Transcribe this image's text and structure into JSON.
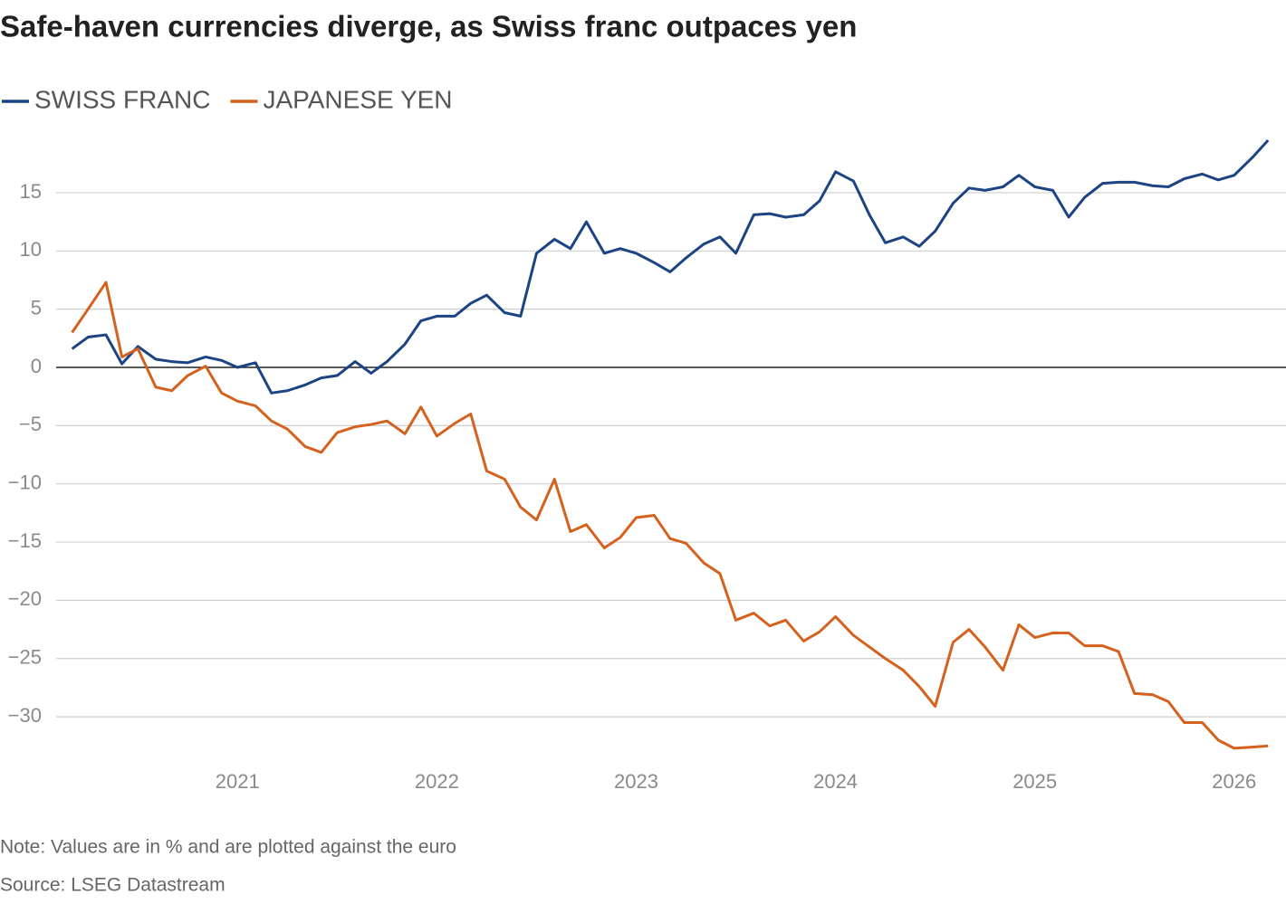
{
  "chart_data": {
    "type": "line",
    "title": "Safe-haven currencies diverge, as Swiss franc outpaces yen",
    "note": "Note: Values are in % and are plotted against the euro",
    "source": "Source: LSEG Datastream",
    "legend": "top-left",
    "grid": true,
    "x": [
      2020.17,
      2020.25,
      2020.34,
      2020.42,
      2020.5,
      2020.59,
      2020.67,
      2020.75,
      2020.84,
      2020.92,
      2021.0,
      2021.09,
      2021.17,
      2021.25,
      2021.34,
      2021.42,
      2021.5,
      2021.59,
      2021.67,
      2021.75,
      2021.84,
      2021.92,
      2022.0,
      2022.09,
      2022.17,
      2022.25,
      2022.34,
      2022.42,
      2022.5,
      2022.59,
      2022.67,
      2022.75,
      2022.84,
      2022.92,
      2023.0,
      2023.09,
      2023.17,
      2023.25,
      2023.34,
      2023.42,
      2023.5,
      2023.59,
      2023.67,
      2023.75,
      2023.84,
      2023.92,
      2024.0,
      2024.09,
      2024.17,
      2024.25,
      2024.34,
      2024.42,
      2024.5,
      2024.59,
      2024.67,
      2024.75,
      2024.84,
      2024.92,
      2025.0,
      2025.09,
      2025.17,
      2025.25,
      2025.34,
      2025.42,
      2025.5,
      2025.59,
      2025.67,
      2025.75,
      2025.84,
      2025.92,
      2026.0,
      2026.09,
      2026.17
    ],
    "xlim": [
      2020.09,
      2026.26
    ],
    "xticks": [
      2021,
      2022,
      2023,
      2024,
      2025,
      2026
    ],
    "ylim": [
      -34,
      20
    ],
    "yticks": [
      {
        "value": -30,
        "label": "−30"
      },
      {
        "value": -25,
        "label": "−25"
      },
      {
        "value": -20,
        "label": "−20"
      },
      {
        "value": -15,
        "label": "−15"
      },
      {
        "value": -10,
        "label": "−10"
      },
      {
        "value": -5,
        "label": "−5"
      },
      0,
      5,
      10,
      15
    ],
    "series": [
      {
        "name": "SWISS FRANC",
        "color": "#1c4382",
        "values": [
          1.6,
          2.6,
          2.8,
          0.3,
          1.8,
          0.7,
          0.5,
          0.4,
          0.9,
          0.6,
          0.0,
          0.4,
          -2.2,
          -2.0,
          -1.5,
          -0.9,
          -0.7,
          0.5,
          -0.5,
          0.5,
          2.0,
          4.0,
          4.4,
          4.4,
          5.5,
          6.2,
          4.7,
          4.4,
          9.8,
          11.0,
          10.2,
          12.5,
          9.8,
          10.2,
          9.8,
          9.0,
          8.2,
          9.4,
          10.6,
          11.2,
          9.8,
          13.1,
          13.2,
          12.9,
          13.1,
          14.3,
          16.8,
          16.0,
          13.1,
          10.7,
          11.2,
          10.4,
          11.7,
          14.1,
          15.4,
          15.2,
          15.5,
          16.5,
          15.5,
          15.2,
          12.9,
          14.6,
          15.8,
          15.9,
          15.9,
          15.6,
          15.5,
          16.2,
          16.6,
          16.1,
          16.5,
          18.0,
          19.5
        ]
      },
      {
        "name": "JAPANESE YEN",
        "color": "#d4611e",
        "values": [
          3.0,
          5.0,
          7.3,
          0.9,
          1.6,
          -1.7,
          -2.0,
          -0.7,
          0.1,
          -2.2,
          -2.9,
          -3.3,
          -4.6,
          -5.3,
          -6.8,
          -7.3,
          -5.6,
          -5.1,
          -4.9,
          -4.6,
          -5.7,
          -3.4,
          -5.9,
          -4.8,
          -4.0,
          -8.9,
          -9.6,
          -12.0,
          -13.1,
          -9.6,
          -14.1,
          -13.5,
          -15.5,
          -14.6,
          -12.9,
          -12.7,
          -14.7,
          -15.1,
          -16.8,
          -17.7,
          -21.7,
          -21.1,
          -22.2,
          -21.7,
          -23.5,
          -22.7,
          -21.4,
          -23.0,
          -24.0,
          -25.0,
          -26.0,
          -27.4,
          -29.1,
          -23.6,
          -22.5,
          -24.0,
          -26.0,
          -22.1,
          -23.2,
          -22.8,
          -22.8,
          -23.9,
          -23.9,
          -24.4,
          -28.0,
          -28.1,
          -28.7,
          -30.5,
          -30.5,
          -32.0,
          -32.7,
          -32.6,
          -32.5
        ]
      }
    ]
  }
}
